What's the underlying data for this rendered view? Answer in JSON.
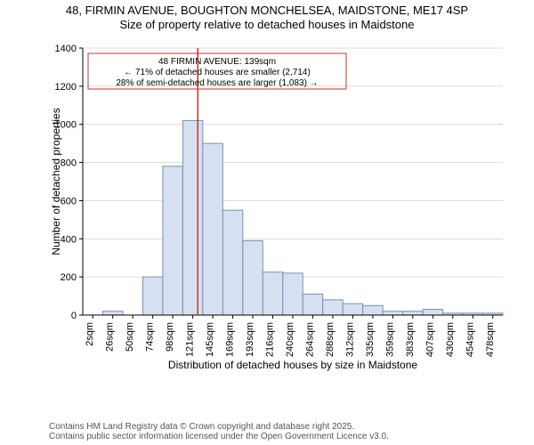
{
  "title": {
    "line1": "48, FIRMIN AVENUE, BOUGHTON MONCHELSEA, MAIDSTONE, ME17 4SP",
    "line2": "Size of property relative to detached houses in Maidstone"
  },
  "chart": {
    "type": "histogram",
    "ylabel": "Number of detached properties",
    "xlabel": "Distribution of detached houses by size in Maidstone",
    "ylim": [
      0,
      1400
    ],
    "ytick_step": 200,
    "yticks": [
      0,
      200,
      400,
      600,
      800,
      1000,
      1200,
      1400
    ],
    "xticks": [
      "2sqm",
      "26sqm",
      "50sqm",
      "74sqm",
      "98sqm",
      "121sqm",
      "145sqm",
      "169sqm",
      "193sqm",
      "216sqm",
      "240sqm",
      "264sqm",
      "288sqm",
      "312sqm",
      "335sqm",
      "359sqm",
      "383sqm",
      "407sqm",
      "430sqm",
      "454sqm",
      "478sqm"
    ],
    "values": [
      0,
      20,
      0,
      200,
      780,
      1020,
      900,
      550,
      390,
      225,
      220,
      110,
      80,
      60,
      50,
      20,
      20,
      30,
      10,
      10,
      10
    ],
    "bar_fill": "#d6e0f0",
    "bar_stroke": "#7891b8",
    "background_color": "#ffffff",
    "axis_color": "#000000",
    "grid_color": "#bbbbbb",
    "bar_width_ratio": 1.0,
    "marker": {
      "x_category_index": 5.75,
      "color": "#c0392b",
      "line_width": 1.5
    },
    "annotation": {
      "line1": "48 FIRMIN AVENUE: 139sqm",
      "line2": "← 71% of detached houses are smaller (2,714)",
      "line3": "28% of semi-detached houses are larger (1,083) →",
      "box_stroke": "#c0392b",
      "text_color": "#000000",
      "fontsize": 10
    },
    "label_fontsize": 12,
    "tick_fontsize": 11
  },
  "footer": {
    "line1": "Contains HM Land Registry data © Crown copyright and database right 2025.",
    "line2": "Contains public sector information licensed under the Open Government Licence v3.0.",
    "color": "#555555",
    "fontsize": 10
  }
}
